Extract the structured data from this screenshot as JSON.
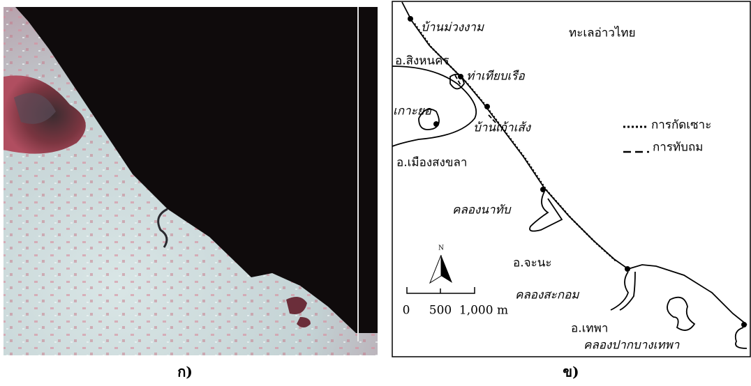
{
  "panels": [
    {
      "label": "ก)"
    },
    {
      "label": "ข)"
    }
  ],
  "map": {
    "places": [
      {
        "name": "บ้านม่วงงาม"
      },
      {
        "name": "ทะเลอ่าวไทย"
      },
      {
        "name": "อ.สิงหนคร"
      },
      {
        "name": "ท่าเทียบเรือ"
      },
      {
        "name": "เกาะยอ"
      },
      {
        "name": "บ้านเก้าเส้ง"
      },
      {
        "name": "อ.เมืองสงขลา"
      },
      {
        "name": "คลองนาทับ"
      },
      {
        "name": "อ.จะนะ"
      },
      {
        "name": "คลองสะกอม"
      },
      {
        "name": "อ.เทพา"
      },
      {
        "name": "คลองปากบางเทพา"
      }
    ],
    "legend": [
      {
        "label": "การกัดเซาะ"
      },
      {
        "label": "การทับถม"
      }
    ],
    "north": "N",
    "scale": [
      "0",
      "500",
      "1,000 m"
    ]
  }
}
